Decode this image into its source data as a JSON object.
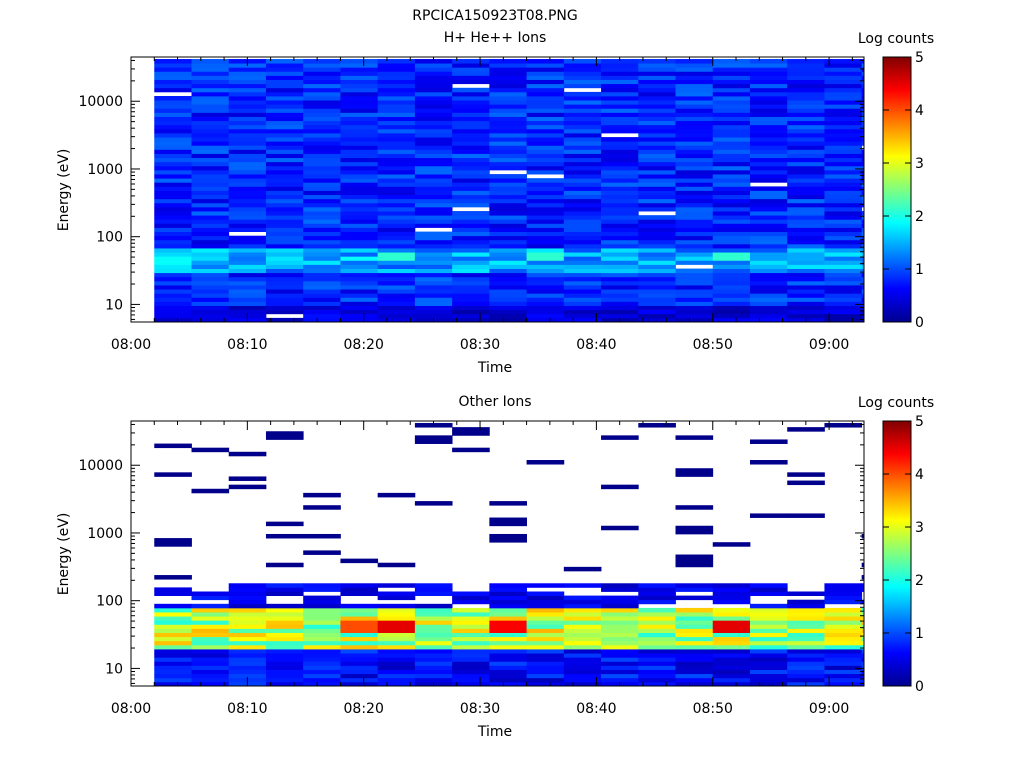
{
  "figure_title": "RPCICA150923T08.PNG",
  "chart_data": [
    {
      "type": "heatmap",
      "title": "H+ He++ Ions",
      "xlabel": "Time",
      "ylabel": "Energy (eV)",
      "colorbar_label": "Log counts",
      "y_scale": "log",
      "ylim": [
        5.5,
        45000
      ],
      "x_ticks": [
        "08:00",
        "08:10",
        "08:20",
        "08:30",
        "08:40",
        "08:50",
        "09:00"
      ],
      "y_ticks": [
        "10",
        "100",
        "1000",
        "10000"
      ],
      "colorbar_ticks": [
        "0",
        "1",
        "2",
        "3",
        "4",
        "5"
      ],
      "colorbar_range": [
        0,
        5
      ],
      "time_range": [
        "08:00",
        "09:03"
      ],
      "data_start": "08:02",
      "bin_minutes": 3.2,
      "energy_bins_min_max_ev": [
        5.5,
        42000
      ],
      "background_log_counts": 0.8,
      "low_energy_peak": {
        "energy_ev": [
          30,
          65
        ],
        "max_log_counts": 2.1
      },
      "notable_peaks": [
        {
          "time": "08:02",
          "energy_ev": 45,
          "log_counts": 1.9
        },
        {
          "time": "08:21",
          "energy_ev": 48,
          "log_counts": 1.9
        },
        {
          "time": "08:24",
          "energy_ev": 52,
          "log_counts": 2.1
        },
        {
          "time": "08:34",
          "energy_ev": 55,
          "log_counts": 2.1
        },
        {
          "time": "08:51",
          "energy_ev": 52,
          "log_counts": 2.1
        }
      ]
    },
    {
      "type": "heatmap",
      "title": "Other Ions",
      "xlabel": "Time",
      "ylabel": "Energy (eV)",
      "colorbar_label": "Log counts",
      "y_scale": "log",
      "ylim": [
        5.5,
        45000
      ],
      "x_ticks": [
        "08:00",
        "08:10",
        "08:20",
        "08:30",
        "08:40",
        "08:50",
        "09:00"
      ],
      "y_ticks": [
        "10",
        "100",
        "1000",
        "10000"
      ],
      "colorbar_ticks": [
        "0",
        "1",
        "2",
        "3",
        "4",
        "5"
      ],
      "colorbar_range": [
        0,
        5
      ],
      "time_range": [
        "08:00",
        "09:03"
      ],
      "data_start": "08:02",
      "bin_minutes": 3.2,
      "band_energy_ev": [
        20,
        80
      ],
      "band_log_counts": [
        2.0,
        4.5
      ],
      "sparse_high_energy_lines": "isolated 1-count detections up to ~40000 eV",
      "notable_peaks": [
        {
          "time": "08:24",
          "energy_ev": 40,
          "log_counts": 4.5
        },
        {
          "time": "08:31",
          "energy_ev": 42,
          "log_counts": 4.4
        },
        {
          "time": "08:51",
          "energy_ev": 40,
          "log_counts": 4.5
        },
        {
          "time": "08:21",
          "energy_ev": 40,
          "log_counts": 4.0
        }
      ]
    }
  ],
  "colors": {
    "colormap": "jet",
    "background": "#ffffff",
    "axis": "#000000"
  }
}
